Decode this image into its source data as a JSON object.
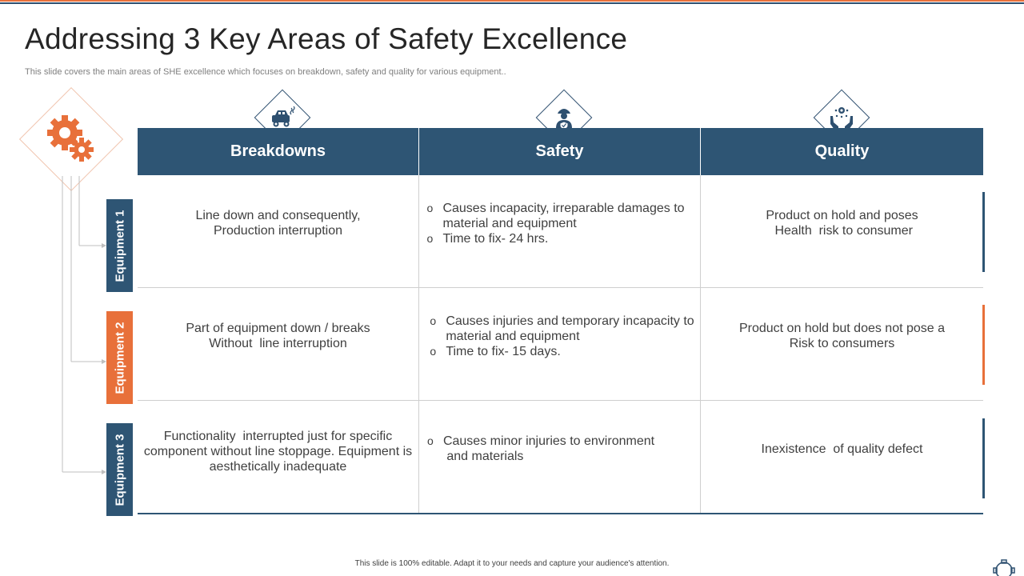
{
  "slide": {
    "title": "Addressing 3 Key Areas of Safety Excellence",
    "subtitle": "This slide covers the main areas of SHE excellence which focuses on breakdown, safety and quality for various equipment..",
    "footer": "This slide is 100% editable. Adapt it to your needs and capture your audience's attention."
  },
  "colors": {
    "navy": "#2e5574",
    "orange": "#e8703a",
    "grid": "#cfcfcf"
  },
  "icons": {
    "main": "gears-icon",
    "breakdowns": "broken-car-icon",
    "safety": "worker-shield-icon",
    "quality": "hands-quality-icon",
    "corner": "gear-outline-icon"
  },
  "table": {
    "headers": [
      "Breakdowns",
      "Safety",
      "Quality"
    ],
    "rows": [
      {
        "label": "Equipment 1",
        "breakdowns": [
          "Line down and consequently,",
          "Production interruption"
        ],
        "safety": [
          "Causes incapacity, irreparable damages to",
          "material and equipment",
          "Time to fix- 24 hrs."
        ],
        "quality": [
          "Product on hold and poses",
          " Health  risk to consumer"
        ]
      },
      {
        "label": "Equipment 2",
        "breakdowns": [
          "Part of equipment down / breaks",
          "Without  line interruption"
        ],
        "safety": [
          "Causes injuries and temporary incapacity to",
          "material and equipment",
          "Time to fix- 15 days."
        ],
        "quality": [
          "Product on hold but does not pose a",
          "Risk to consumers"
        ]
      },
      {
        "label": "Equipment 3",
        "breakdowns": [
          "Functionality  interrupted just for specific",
          "component without line stoppage. Equipment is",
          "aesthetically inadequate"
        ],
        "safety": [
          "Causes minor injuries to environment",
          " and materials"
        ],
        "quality": [
          "Inexistence  of quality defect"
        ]
      }
    ]
  }
}
